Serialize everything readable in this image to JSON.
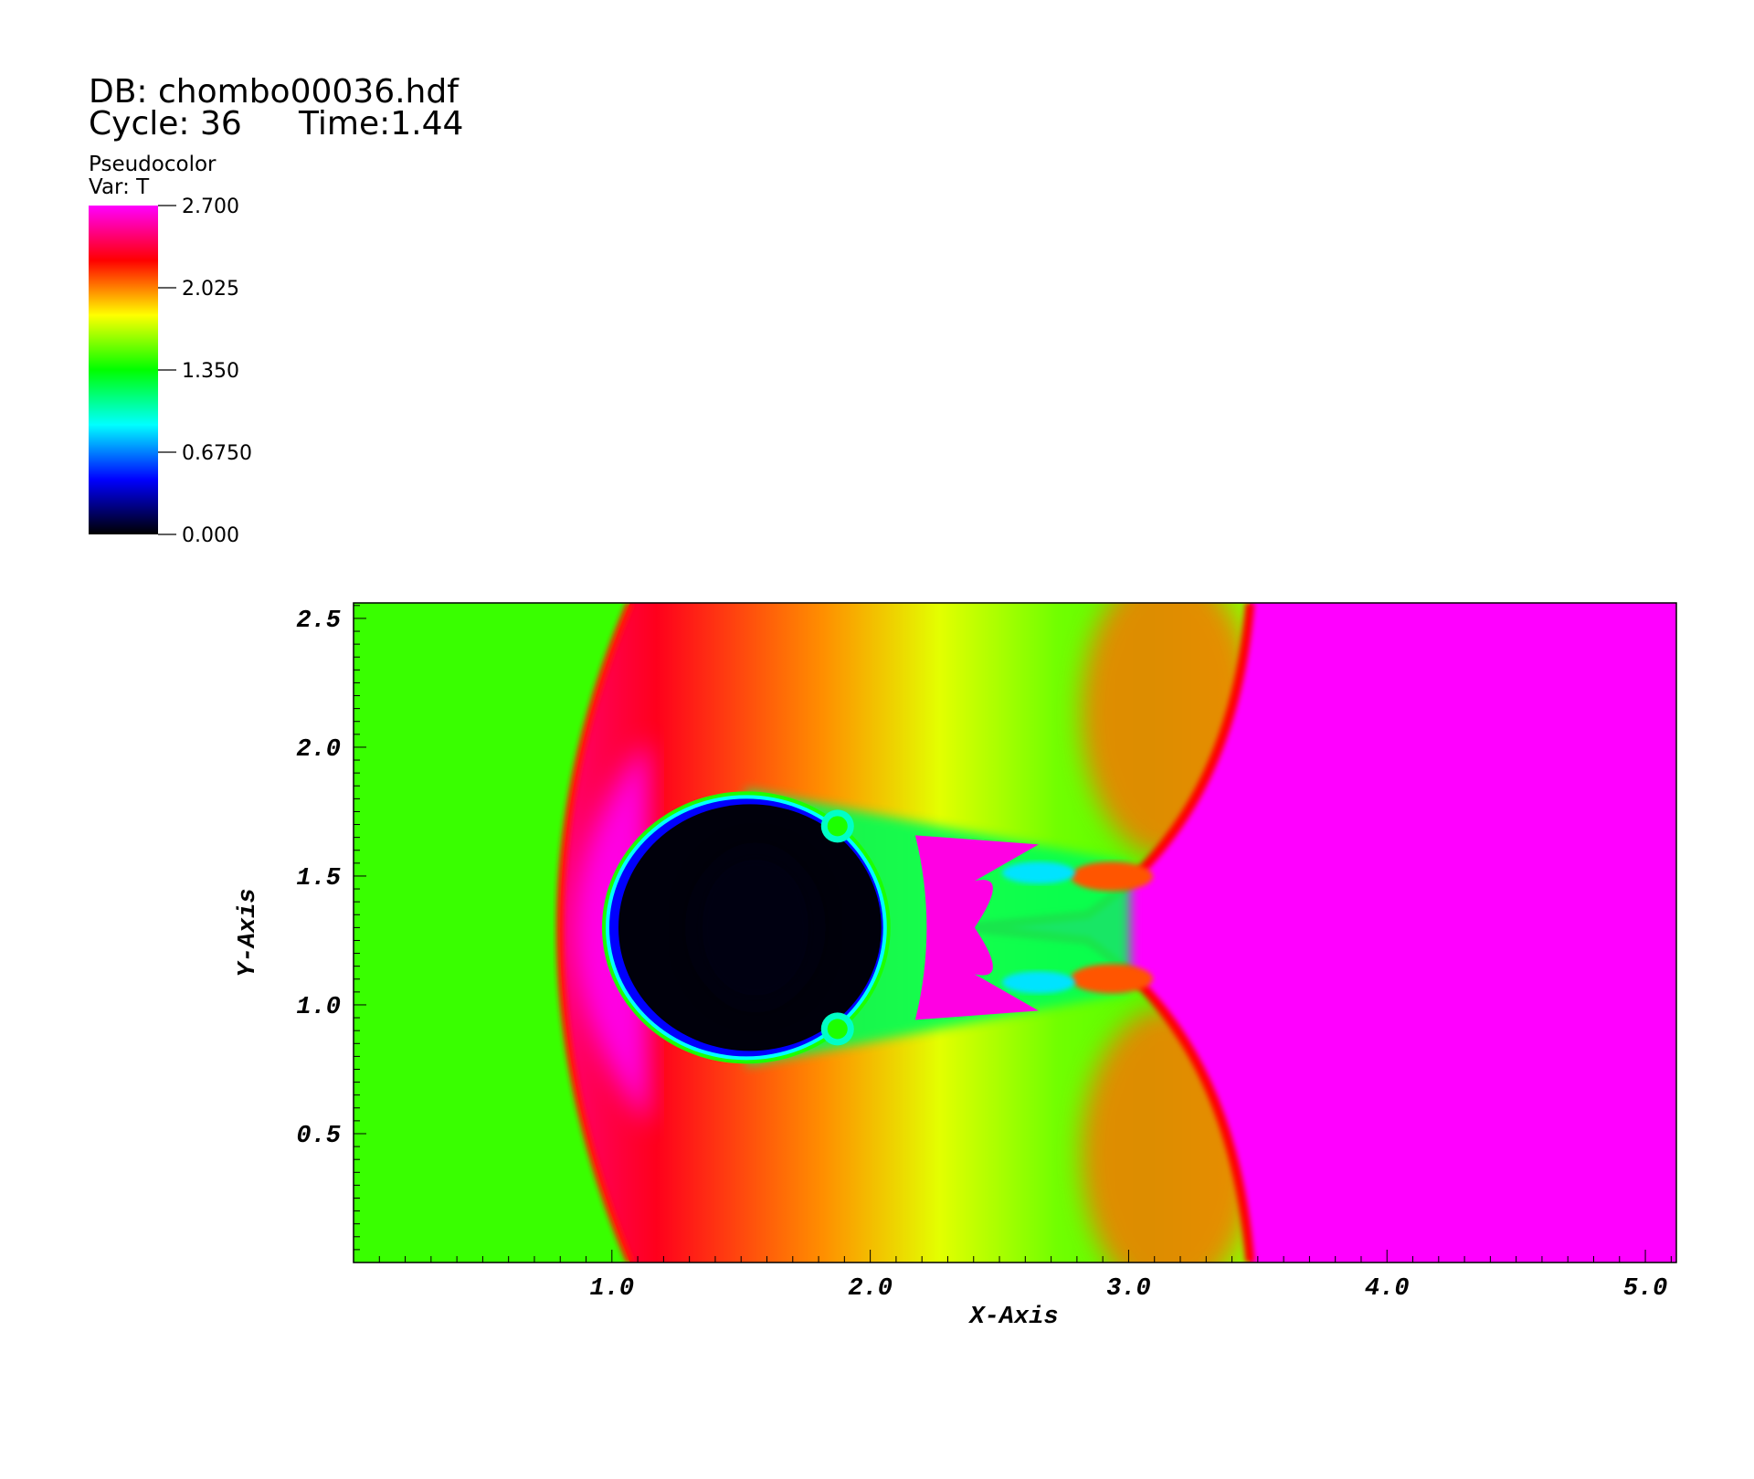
{
  "header": {
    "db_label": "DB: chombo00036.hdf",
    "cycle_label": "Cycle: 36",
    "time_label": "Time:1.44"
  },
  "legend": {
    "plot_type": "Pseudocolor",
    "var_label": "Var: T",
    "max": 2.7,
    "min": 0.0,
    "tick_labels": [
      "2.700",
      "2.025",
      "1.350",
      "0.6750",
      "0.000"
    ],
    "colormap": [
      "#000000",
      "#0000ff",
      "#00ffff",
      "#00ff00",
      "#ffff00",
      "#ff0000",
      "#ff00ff"
    ]
  },
  "chart_data": {
    "type": "heatmap",
    "xlabel": "X-Axis",
    "ylabel": "Y-Axis",
    "xlim": [
      0.0,
      5.12
    ],
    "ylim": [
      0.0,
      2.56
    ],
    "x_ticks": [
      1.0,
      2.0,
      3.0,
      4.0,
      5.0
    ],
    "x_tick_labels": [
      "1.0",
      "2.0",
      "3.0",
      "4.0",
      "5.0"
    ],
    "y_ticks": [
      0.5,
      1.0,
      1.5,
      2.0,
      2.5
    ],
    "y_tick_labels": [
      "0.5",
      "1.0",
      "1.5",
      "2.0",
      "2.5"
    ],
    "grid": false,
    "field": {
      "upstream_T": 1.45,
      "downstream_T": 2.7,
      "bow_shock_x_center": 0.72,
      "bow_shock_x_edge": 1.07,
      "transmitted_shock_x_center": 2.38,
      "transmitted_shock_x_edge": 3.47,
      "bubble_center": [
        1.52,
        1.3
      ],
      "bubble_radius": [
        0.53,
        0.5
      ],
      "bubble_T": 0.02
    }
  }
}
